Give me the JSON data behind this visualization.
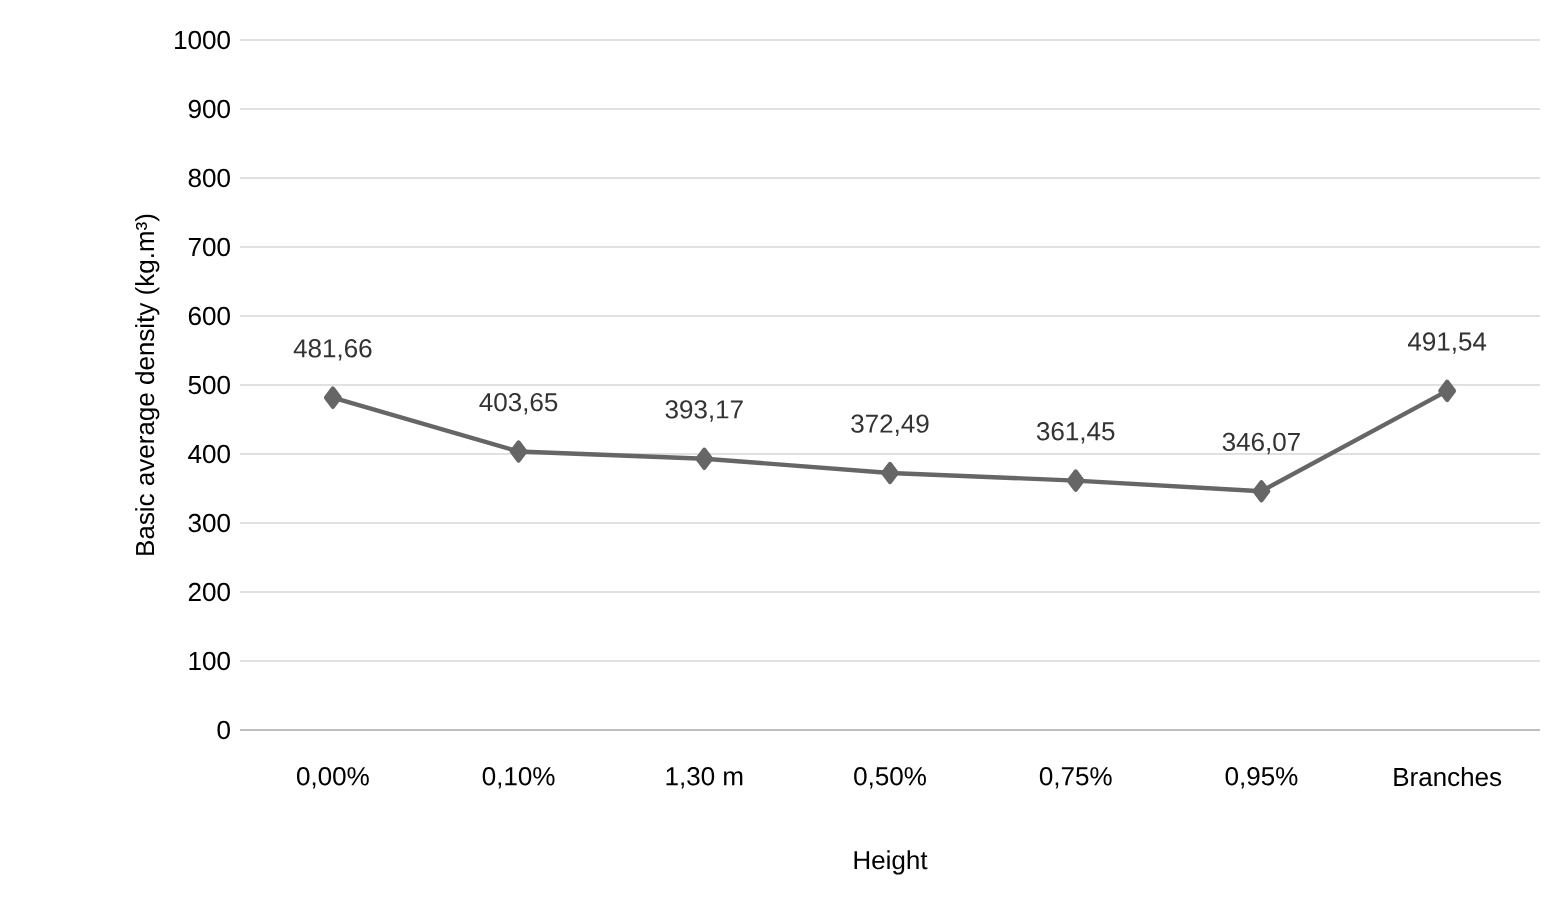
{
  "chart_data": {
    "type": "line",
    "xlabel": "Height",
    "ylabel": "Basic average density (kg.m³)",
    "categories": [
      "0,00%",
      "0,10%",
      "1,30 m",
      "0,50%",
      "0,75%",
      "0,95%",
      "Branches"
    ],
    "values": [
      481.66,
      403.65,
      393.17,
      372.49,
      361.45,
      346.07,
      491.54
    ],
    "value_labels": [
      "481,66",
      "403,65",
      "393,17",
      "372,49",
      "361,45",
      "346,07",
      "491,54"
    ],
    "color": "#666666",
    "marker": "diamond",
    "line_style": "solid",
    "grid": "y",
    "ylim": [
      0,
      1000
    ],
    "yticks": [
      0,
      100,
      200,
      300,
      400,
      500,
      600,
      700,
      800,
      900,
      1000
    ]
  }
}
